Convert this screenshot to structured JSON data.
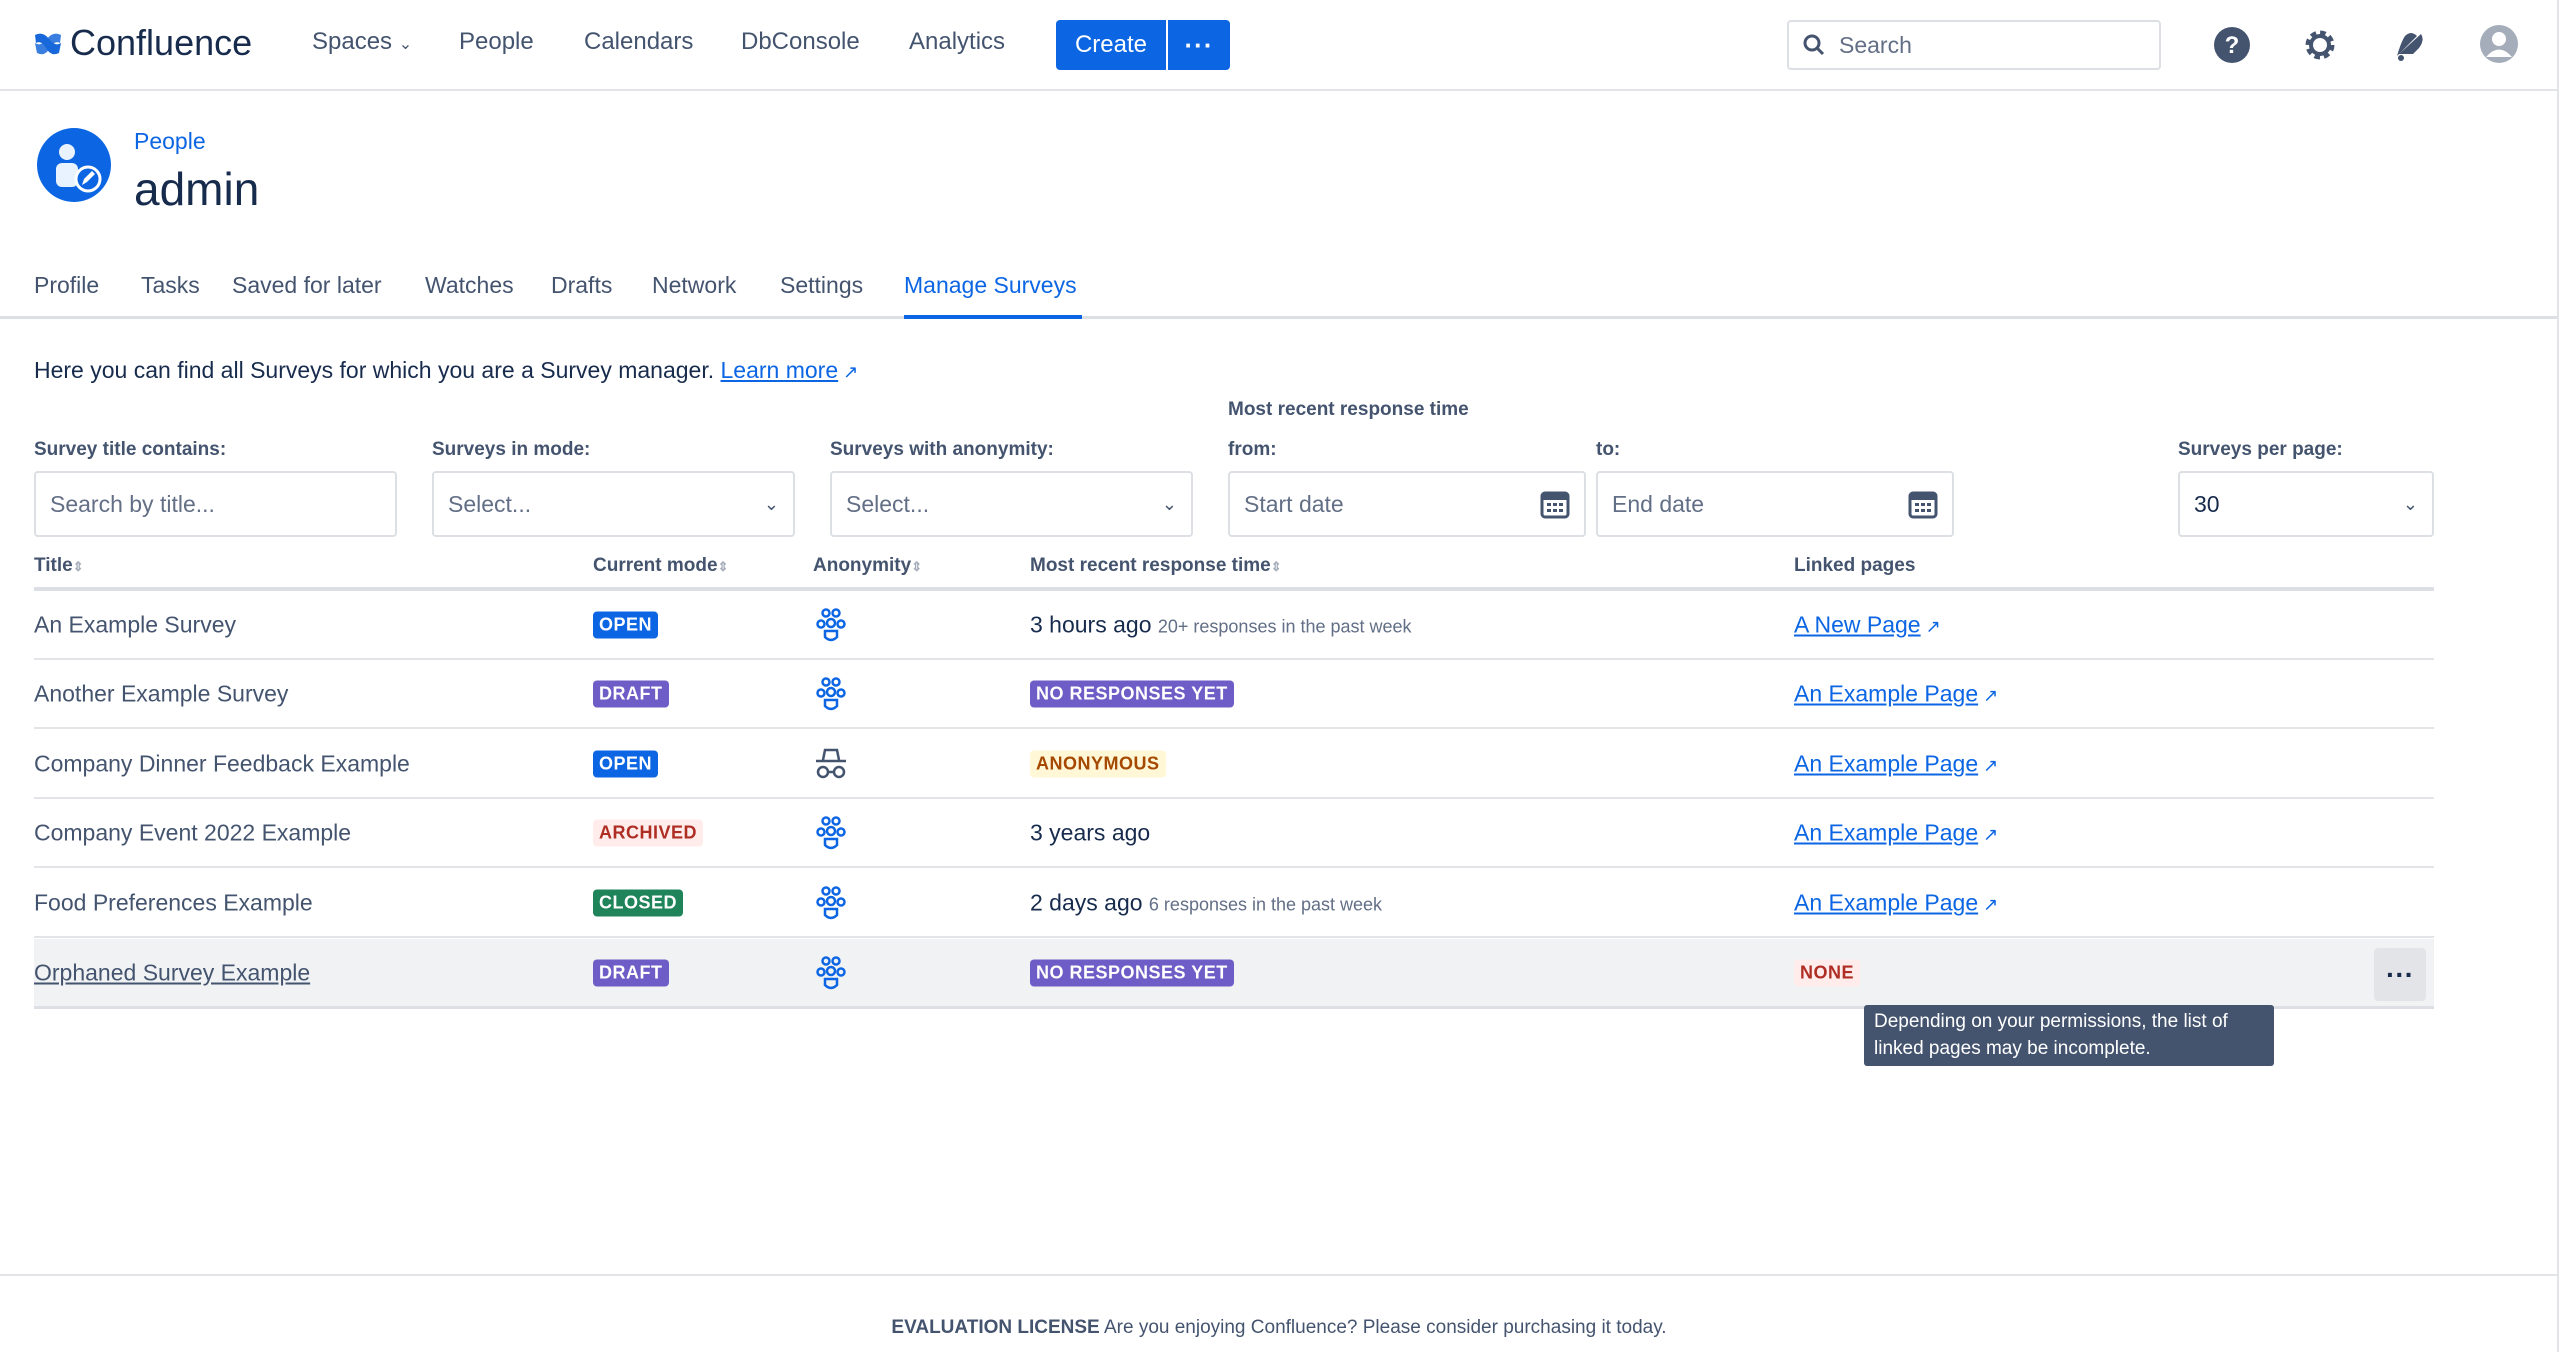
{
  "nav": {
    "brand": "Confluence",
    "items": [
      "Spaces",
      "People",
      "Calendars",
      "DbConsole",
      "Analytics"
    ],
    "create": "Create",
    "search_placeholder": "Search"
  },
  "header": {
    "breadcrumb": "People",
    "title": "admin"
  },
  "tabs": [
    "Profile",
    "Tasks",
    "Saved for later",
    "Watches",
    "Drafts",
    "Network",
    "Settings",
    "Manage Surveys"
  ],
  "active_tab": "Manage Surveys",
  "intro": {
    "text": "Here you can find all Surveys for which you are a Survey manager.",
    "link": "Learn more"
  },
  "filters": {
    "group_label": "Most recent response time",
    "title_label": "Survey title contains:",
    "title_placeholder": "Search by title...",
    "mode_label": "Surveys in mode:",
    "mode_value": "Select...",
    "anon_label": "Surveys with anonymity:",
    "anon_value": "Select...",
    "from_label": "from:",
    "from_placeholder": "Start date",
    "to_label": "to:",
    "to_placeholder": "End date",
    "per_page_label": "Surveys per page:",
    "per_page_value": "30"
  },
  "table": {
    "headers": [
      "Title",
      "Current mode",
      "Anonymity",
      "Most recent response time",
      "Linked pages"
    ],
    "rows": [
      {
        "title": "An Example Survey",
        "mode": "OPEN",
        "anonymity": "people-icon",
        "time": "3 hours ago",
        "note": "20+ responses in the past week",
        "link": "A New Page"
      },
      {
        "title": "Another Example Survey",
        "mode": "DRAFT",
        "anonymity": "people-icon",
        "time_badge": "NO RESPONSES YET",
        "link": "An Example Page"
      },
      {
        "title": "Company Dinner Feedback Example",
        "mode": "OPEN",
        "anonymity": "anonymous-icon",
        "time_badge": "ANONYMOUS",
        "link": "An Example Page"
      },
      {
        "title": "Company Event 2022 Example",
        "mode": "ARCHIVED",
        "anonymity": "people-icon",
        "time": "3 years ago",
        "link": "An Example Page"
      },
      {
        "title": "Food Preferences Example",
        "mode": "CLOSED",
        "anonymity": "people-icon",
        "time": "2 days ago",
        "note": "6 responses in the past week",
        "link": "An Example Page"
      },
      {
        "title": "Orphaned Survey Example",
        "mode": "DRAFT",
        "anonymity": "people-icon",
        "time_badge": "NO RESPONSES YET",
        "link_badge": "NONE"
      }
    ]
  },
  "tooltip": "Depending on your permissions, the list of linked pages may be incomplete.",
  "footer": {
    "strong": "EVALUATION LICENSE",
    "text": "Are you enjoying Confluence? Please consider purchasing it today."
  },
  "colors": {
    "primary": "#0c66e4",
    "open": "#0c66e4",
    "draft": "#6e5dc6",
    "closed": "#1f845a",
    "archived_bg": "#ffeceb",
    "archived_fg": "#ae2e24",
    "anon_bg": "#fff7d6",
    "anon_fg": "#a54800"
  }
}
